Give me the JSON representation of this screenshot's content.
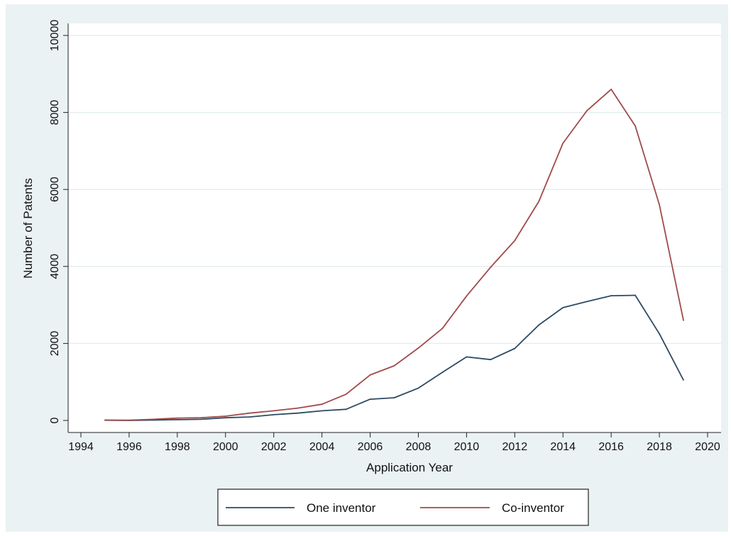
{
  "chart_data": {
    "type": "line",
    "title": "",
    "xlabel": "Application Year",
    "ylabel": "Number of Patents",
    "xlim": [
      1994,
      2020
    ],
    "ylim": [
      0,
      10000
    ],
    "xticks": [
      1994,
      1996,
      1998,
      2000,
      2002,
      2004,
      2006,
      2008,
      2010,
      2012,
      2014,
      2016,
      2018,
      2020
    ],
    "yticks": [
      0,
      2000,
      4000,
      6000,
      8000,
      10000
    ],
    "grid": true,
    "legend_position": "bottom",
    "x": [
      1995,
      1996,
      1997,
      1998,
      1999,
      2000,
      2001,
      2002,
      2003,
      2004,
      2005,
      2006,
      2007,
      2008,
      2009,
      2010,
      2011,
      2012,
      2013,
      2014,
      2015,
      2016,
      2017,
      2018,
      2019
    ],
    "series": [
      {
        "name": "One inventor",
        "color": "#2d4a63",
        "values": [
          5,
          0,
          10,
          20,
          30,
          70,
          90,
          150,
          190,
          250,
          290,
          550,
          590,
          840,
          1250,
          1650,
          1580,
          1870,
          2480,
          2930,
          3090,
          3240,
          3250,
          2250,
          1050
        ]
      },
      {
        "name": "Co-inventor",
        "color": "#a04a4a",
        "values": [
          10,
          5,
          30,
          60,
          70,
          110,
          190,
          250,
          320,
          420,
          680,
          1180,
          1420,
          1880,
          2390,
          3230,
          3980,
          4670,
          5690,
          7200,
          8050,
          8600,
          7650,
          5600,
          2600
        ]
      }
    ]
  }
}
